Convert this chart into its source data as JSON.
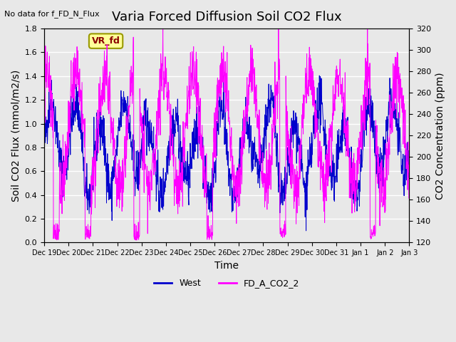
{
  "title": "Varia Forced Diffusion Soil CO2 Flux",
  "top_left_text": "No data for f_FD_N_Flux",
  "xlabel": "Time",
  "ylabel_left": "Soil CO2 Flux (mmol/m2/s)",
  "ylabel_right": "CO2 Concentration (ppm)",
  "ylim_left": [
    0.0,
    1.8
  ],
  "ylim_right": [
    120,
    320
  ],
  "yticks_left": [
    0.0,
    0.2,
    0.4,
    0.6,
    0.8,
    1.0,
    1.2,
    1.4,
    1.6,
    1.8
  ],
  "yticks_right": [
    120,
    140,
    160,
    180,
    200,
    220,
    240,
    260,
    280,
    300,
    320
  ],
  "xtick_positions": [
    0,
    1,
    2,
    3,
    4,
    5,
    6,
    7,
    8,
    9,
    10,
    11,
    12,
    13,
    14,
    15
  ],
  "xtick_labels": [
    "Dec 19",
    "Dec 20",
    "Dec 21",
    "Dec 22",
    "Dec 23",
    "Dec 24",
    "Dec 25",
    "Dec 26",
    "Dec 27",
    "Dec 28",
    "Dec 29",
    "Dec 30",
    "Dec 31",
    "Jan 1",
    "Jan 2",
    "Jan 3"
  ],
  "legend_labels": [
    "West",
    "FD_A_CO2_2"
  ],
  "line_blue_color": "#0000cc",
  "line_magenta_color": "#ff00ff",
  "background_color": "#e8e8e8",
  "box_label": "VR_fd",
  "box_bg_color": "#ffff99",
  "box_border_color": "#999900",
  "title_fontsize": 13,
  "axis_fontsize": 10,
  "tick_fontsize": 8
}
